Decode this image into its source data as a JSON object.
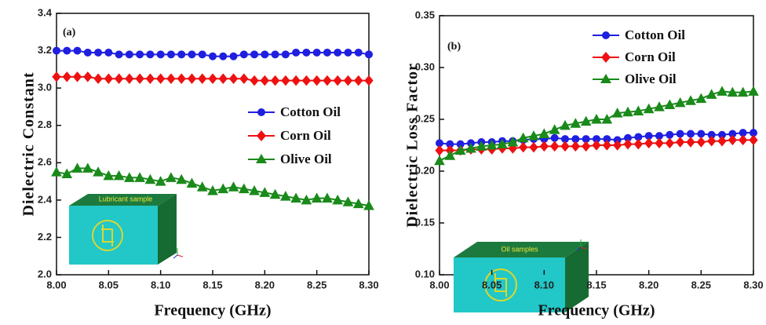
{
  "chart_data": [
    {
      "type": "line",
      "panel_label": "(a)",
      "x_label": "Frequency (GHz)",
      "y_label": "Dielectric Constant",
      "inset_label": "Lubricant sample",
      "x": [
        8.0,
        8.01,
        8.02,
        8.03,
        8.04,
        8.05,
        8.06,
        8.07,
        8.08,
        8.09,
        8.1,
        8.11,
        8.12,
        8.13,
        8.14,
        8.15,
        8.16,
        8.17,
        8.18,
        8.19,
        8.2,
        8.21,
        8.22,
        8.23,
        8.24,
        8.25,
        8.26,
        8.27,
        8.28,
        8.29,
        8.3
      ],
      "xlim": [
        8.0,
        8.3
      ],
      "xticks": [
        {
          "value": 8,
          "label": "8.00"
        },
        8.05,
        {
          "value": 8.1,
          "label": "8.10"
        },
        8.15,
        {
          "value": 8.2,
          "label": "8.20"
        },
        8.25,
        {
          "value": 8.3,
          "label": "8.30"
        }
      ],
      "ylim": [
        2.0,
        3.4
      ],
      "yticks": [
        {
          "value": 2,
          "label": "2.0"
        },
        2.2,
        2.4,
        2.6,
        2.8,
        {
          "value": 3,
          "label": "3.0"
        },
        3.2,
        3.4
      ],
      "series": [
        {
          "name": "Cotton Oil",
          "color": "#1f1fe0",
          "marker": "circle",
          "values": [
            3.2,
            3.2,
            3.2,
            3.19,
            3.19,
            3.19,
            3.18,
            3.18,
            3.18,
            3.18,
            3.18,
            3.18,
            3.18,
            3.18,
            3.18,
            3.17,
            3.17,
            3.17,
            3.18,
            3.18,
            3.18,
            3.18,
            3.18,
            3.19,
            3.19,
            3.19,
            3.19,
            3.19,
            3.19,
            3.19,
            3.18
          ]
        },
        {
          "name": "Corn Oil",
          "color": "#ee1111",
          "marker": "diamond",
          "values": [
            3.06,
            3.06,
            3.06,
            3.06,
            3.05,
            3.05,
            3.05,
            3.05,
            3.05,
            3.05,
            3.05,
            3.05,
            3.05,
            3.05,
            3.05,
            3.05,
            3.05,
            3.05,
            3.05,
            3.04,
            3.04,
            3.04,
            3.04,
            3.04,
            3.04,
            3.04,
            3.04,
            3.04,
            3.04,
            3.04,
            3.04
          ]
        },
        {
          "name": "Olive Oil",
          "color": "#1a8a1a",
          "marker": "triangle",
          "values": [
            2.55,
            2.54,
            2.57,
            2.57,
            2.55,
            2.53,
            2.53,
            2.52,
            2.52,
            2.51,
            2.5,
            2.52,
            2.51,
            2.49,
            2.47,
            2.45,
            2.46,
            2.47,
            2.46,
            2.45,
            2.44,
            2.43,
            2.42,
            2.41,
            2.4,
            2.41,
            2.41,
            2.4,
            2.39,
            2.38,
            2.37
          ]
        }
      ]
    },
    {
      "type": "line",
      "panel_label": "(b)",
      "x_label": "Frequency (GHz)",
      "y_label": "Dielectric Loss Factor",
      "inset_label": "Oil samples",
      "x": [
        8.0,
        8.01,
        8.02,
        8.03,
        8.04,
        8.05,
        8.06,
        8.07,
        8.08,
        8.09,
        8.1,
        8.11,
        8.12,
        8.13,
        8.14,
        8.15,
        8.16,
        8.17,
        8.18,
        8.19,
        8.2,
        8.21,
        8.22,
        8.23,
        8.24,
        8.25,
        8.26,
        8.27,
        8.28,
        8.29,
        8.3
      ],
      "xlim": [
        8.0,
        8.3
      ],
      "xticks": [
        {
          "value": 8,
          "label": "8.00"
        },
        8.05,
        {
          "value": 8.1,
          "label": "8.10"
        },
        8.15,
        {
          "value": 8.2,
          "label": "8.20"
        },
        8.25,
        {
          "value": 8.3,
          "label": "8.30"
        }
      ],
      "ylim": [
        0.1,
        0.35
      ],
      "yticks": [
        {
          "value": 0.1,
          "label": "0.10"
        },
        0.15,
        {
          "value": 0.2,
          "label": "0.20"
        },
        0.25,
        {
          "value": 0.3,
          "label": "0.30"
        },
        0.35
      ],
      "series": [
        {
          "name": "Cotton Oil",
          "color": "#1f1fe0",
          "marker": "circle",
          "values": [
            0.227,
            0.226,
            0.226,
            0.227,
            0.228,
            0.228,
            0.229,
            0.229,
            0.23,
            0.231,
            0.231,
            0.232,
            0.231,
            0.231,
            0.231,
            0.231,
            0.231,
            0.23,
            0.232,
            0.233,
            0.234,
            0.234,
            0.235,
            0.236,
            0.236,
            0.236,
            0.235,
            0.235,
            0.236,
            0.237,
            0.237
          ]
        },
        {
          "name": "Corn Oil",
          "color": "#ee1111",
          "marker": "diamond",
          "values": [
            0.22,
            0.22,
            0.22,
            0.221,
            0.221,
            0.221,
            0.222,
            0.222,
            0.223,
            0.223,
            0.224,
            0.224,
            0.224,
            0.224,
            0.224,
            0.225,
            0.225,
            0.225,
            0.226,
            0.226,
            0.227,
            0.227,
            0.227,
            0.228,
            0.228,
            0.228,
            0.229,
            0.229,
            0.23,
            0.23,
            0.23
          ]
        },
        {
          "name": "Olive Oil",
          "color": "#1a8a1a",
          "marker": "triangle",
          "values": [
            0.21,
            0.215,
            0.22,
            0.222,
            0.224,
            0.225,
            0.226,
            0.228,
            0.232,
            0.234,
            0.236,
            0.24,
            0.244,
            0.246,
            0.248,
            0.25,
            0.25,
            0.256,
            0.257,
            0.258,
            0.26,
            0.262,
            0.264,
            0.266,
            0.268,
            0.27,
            0.274,
            0.277,
            0.276,
            0.276,
            0.277
          ]
        }
      ]
    }
  ]
}
